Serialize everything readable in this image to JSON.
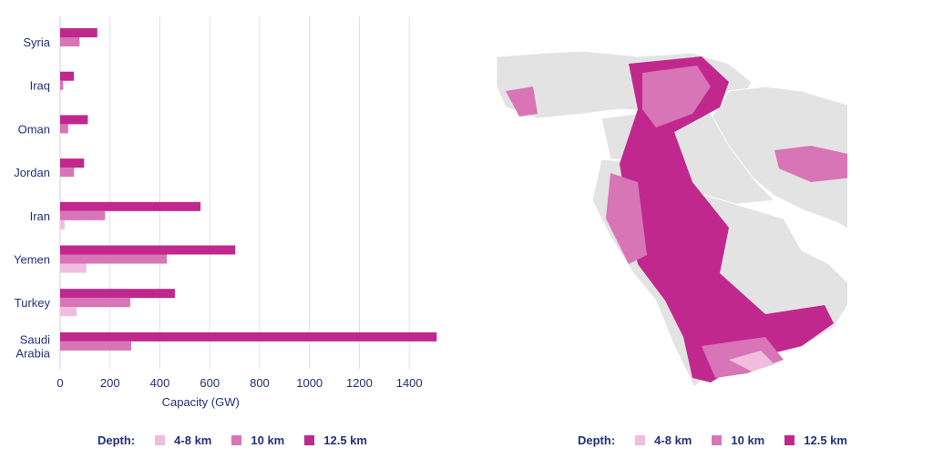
{
  "chart_data": {
    "type": "bar",
    "orientation": "horizontal",
    "categories": [
      "Syria",
      "Iraq",
      "Oman",
      "Jordan",
      "Iran",
      "Yemen",
      "Turkey",
      "Saudi Arabia"
    ],
    "series": [
      {
        "name": "12.5 km",
        "color": "#c0288e",
        "values": [
          149,
          55,
          111,
          96,
          563,
          702,
          460,
          1510
        ]
      },
      {
        "name": "10 km",
        "color": "#d775b6",
        "values": [
          78,
          12,
          32,
          56,
          180,
          428,
          281,
          285
        ]
      },
      {
        "name": "4-8 km",
        "color": "#efbddd",
        "values": [
          null,
          null,
          null,
          null,
          18,
          105,
          66,
          null
        ]
      }
    ],
    "xlabel": "Capacity (GW)",
    "xlim": [
      0,
      1500
    ],
    "xticks": [
      0,
      200,
      400,
      600,
      800,
      1000,
      1200,
      1400
    ],
    "grid": "vertical",
    "legend_title": "Depth:",
    "legend_placement": "bottom"
  },
  "map_legend": {
    "title": "Depth:",
    "items": [
      {
        "label": "4-8 km",
        "color": "#efbddd"
      },
      {
        "label": "10 km",
        "color": "#d775b6"
      },
      {
        "label": "12.5 km",
        "color": "#c0288e"
      }
    ]
  }
}
